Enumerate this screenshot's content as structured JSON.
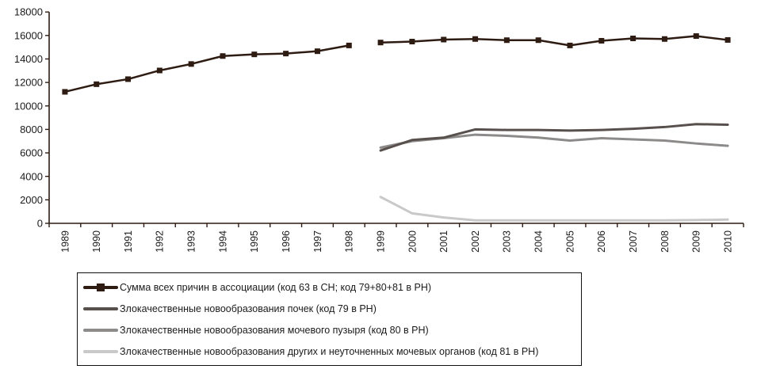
{
  "chart_data": {
    "type": "line",
    "title": "",
    "x_labels": [
      "1989",
      "1990",
      "1991",
      "1992",
      "1993",
      "1994",
      "1995",
      "1996",
      "1997",
      "1998",
      "1999",
      "2000",
      "2001",
      "2002",
      "2003",
      "2004",
      "2005",
      "2006",
      "2007",
      "2008",
      "2009",
      "2010"
    ],
    "ylim": [
      0,
      18000
    ],
    "ytick_step": 2000,
    "ytick_labels": [
      "0",
      "2000",
      "4000",
      "6000",
      "8000",
      "10000",
      "12000",
      "14000",
      "16000",
      "18000"
    ],
    "grid": "off",
    "axis_color": "#2e1c12",
    "text_color": "#1b1b1b",
    "legend_position": "bottom-left-boxed",
    "series": [
      {
        "name": "Сумма всех причин в ассоциации (код 63 в СН; код 79+80+81 в РН)",
        "color": "#2e1c12",
        "marker": "square",
        "line_width": 2.5,
        "break_after": "1998",
        "values": [
          11200,
          11850,
          12280,
          13020,
          13570,
          14250,
          14390,
          14460,
          14660,
          15150,
          15400,
          15480,
          15650,
          15700,
          15600,
          15600,
          15150,
          15550,
          15750,
          15700,
          15950,
          15620
        ]
      },
      {
        "name": "Злокачественные новообразования почек (код 79 в РН)",
        "color": "#57504d",
        "marker": "none",
        "line_width": 3,
        "values": [
          null,
          null,
          null,
          null,
          null,
          null,
          null,
          null,
          null,
          null,
          6200,
          7100,
          7300,
          8000,
          7950,
          7950,
          7900,
          7950,
          8050,
          8200,
          8450,
          8400
        ]
      },
      {
        "name": "Злокачественные новообразования мочевого пузыря (код 80 в РН)",
        "color": "#8d8b8a",
        "marker": "none",
        "line_width": 3,
        "values": [
          null,
          null,
          null,
          null,
          null,
          null,
          null,
          null,
          null,
          null,
          6450,
          7000,
          7250,
          7550,
          7450,
          7300,
          7050,
          7250,
          7150,
          7050,
          6800,
          6600
        ]
      },
      {
        "name": "Злокачественные новообразования других и неуточненных мочевых органов (код 81 в РН)",
        "color": "#c9c9c9",
        "marker": "none",
        "line_width": 3,
        "values": [
          null,
          null,
          null,
          null,
          null,
          null,
          null,
          null,
          null,
          null,
          2250,
          850,
          500,
          250,
          250,
          250,
          250,
          250,
          250,
          250,
          280,
          320
        ]
      }
    ]
  }
}
